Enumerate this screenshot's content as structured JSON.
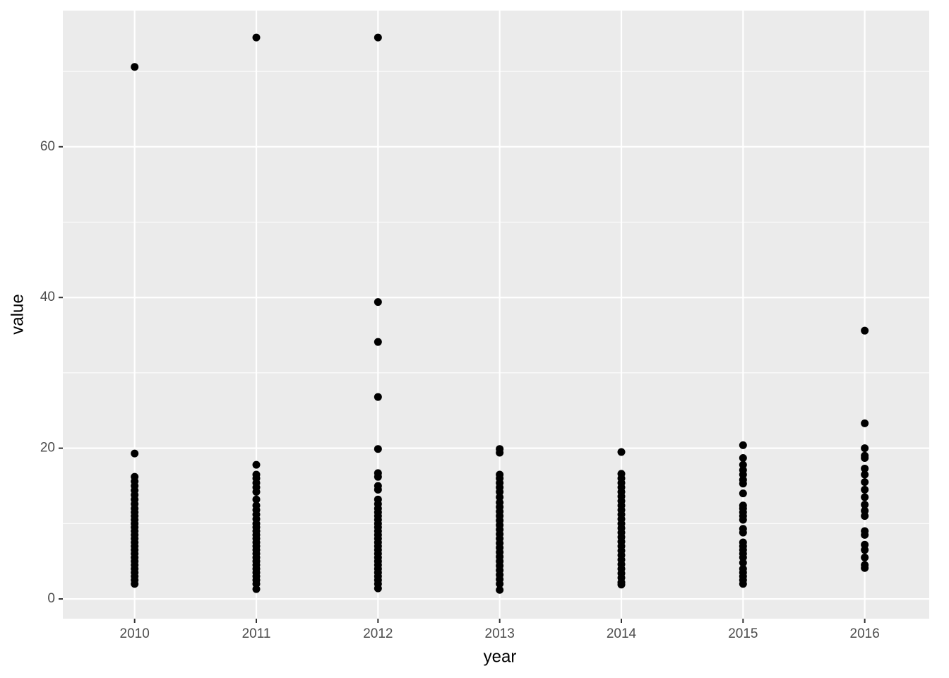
{
  "chart_data": {
    "type": "scatter",
    "x_label": "year",
    "y_label": "value",
    "xlim": [
      2009.41,
      2016.53
    ],
    "ylim": [
      -2.62,
      78.07
    ],
    "xticks": [
      2010,
      2011,
      2012,
      2013,
      2014,
      2015,
      2016
    ],
    "yticks": [
      0,
      20,
      40,
      60
    ],
    "y_minor_grid": [
      10,
      30,
      50,
      70
    ],
    "grid": true,
    "color": "#000000",
    "x": [
      2010,
      2010,
      2010,
      2010,
      2010,
      2010,
      2010,
      2010,
      2010,
      2010,
      2010,
      2010,
      2010,
      2010,
      2010,
      2010,
      2010,
      2010,
      2010,
      2010,
      2010,
      2010,
      2010,
      2010,
      2010,
      2010,
      2010,
      2010,
      2010,
      2010,
      2011,
      2011,
      2011,
      2011,
      2011,
      2011,
      2011,
      2011,
      2011,
      2011,
      2011,
      2011,
      2011,
      2011,
      2011,
      2011,
      2011,
      2011,
      2011,
      2011,
      2011,
      2011,
      2011,
      2011,
      2011,
      2011,
      2011,
      2011,
      2011,
      2011,
      2012,
      2012,
      2012,
      2012,
      2012,
      2012,
      2012,
      2012,
      2012,
      2012,
      2012,
      2012,
      2012,
      2012,
      2012,
      2012,
      2012,
      2012,
      2012,
      2012,
      2012,
      2012,
      2012,
      2012,
      2012,
      2012,
      2012,
      2012,
      2012,
      2012,
      2012,
      2012,
      2012,
      2013,
      2013,
      2013,
      2013,
      2013,
      2013,
      2013,
      2013,
      2013,
      2013,
      2013,
      2013,
      2013,
      2013,
      2013,
      2013,
      2013,
      2013,
      2013,
      2013,
      2013,
      2013,
      2013,
      2013,
      2013,
      2013,
      2013,
      2013,
      2014,
      2014,
      2014,
      2014,
      2014,
      2014,
      2014,
      2014,
      2014,
      2014,
      2014,
      2014,
      2014,
      2014,
      2014,
      2014,
      2014,
      2014,
      2014,
      2014,
      2014,
      2014,
      2014,
      2014,
      2014,
      2014,
      2014,
      2015,
      2015,
      2015,
      2015,
      2015,
      2015,
      2015,
      2015,
      2015,
      2015,
      2015,
      2015,
      2015,
      2015,
      2015,
      2015,
      2015,
      2015,
      2015,
      2015,
      2015,
      2015,
      2015,
      2015,
      2015,
      2015,
      2016,
      2016,
      2016,
      2016,
      2016,
      2016,
      2016,
      2016,
      2016,
      2016,
      2016,
      2016,
      2016,
      2016,
      2016,
      2016,
      2016,
      2016,
      2016,
      2016
    ],
    "values": [
      70.6,
      19.3,
      16.2,
      15.6,
      15,
      14.4,
      13.8,
      13.2,
      12.6,
      12,
      11.5,
      11,
      10.5,
      10,
      9.5,
      9,
      8.5,
      8,
      7.5,
      7,
      6.5,
      6,
      5.5,
      5,
      4.5,
      4,
      3.5,
      3,
      2.5,
      2,
      74.5,
      17.8,
      16.5,
      16,
      15.4,
      14.8,
      14.2,
      13.2,
      12.4,
      11.8,
      11.2,
      10.6,
      10,
      9.5,
      9,
      8.5,
      8,
      7.5,
      7,
      6.5,
      6,
      5.5,
      5,
      4.5,
      4,
      3.5,
      3,
      2.5,
      2,
      1.3,
      74.5,
      39.4,
      34.1,
      26.8,
      19.9,
      16.7,
      16.2,
      15,
      14.5,
      13.2,
      12.6,
      12,
      11.5,
      11,
      10.5,
      10,
      9.5,
      9,
      8.5,
      8,
      7.5,
      7,
      6.5,
      6,
      5.5,
      5,
      4.5,
      4,
      3.5,
      3,
      2.5,
      2,
      1.4,
      19.9,
      19.4,
      16.5,
      16,
      15.4,
      14.8,
      14.2,
      13.5,
      12.8,
      12.2,
      11.6,
      11,
      10.4,
      9.8,
      9.2,
      8.6,
      8,
      7.4,
      6.8,
      6.2,
      5.6,
      5,
      4.4,
      3.8,
      3.2,
      2.6,
      2,
      1.2,
      19.5,
      16.6,
      16,
      15.4,
      14.8,
      14.2,
      13.6,
      13,
      12.4,
      11.8,
      11.2,
      10.6,
      10,
      9.4,
      8.8,
      8.2,
      7.6,
      7,
      6.4,
      5.8,
      5.2,
      4.6,
      4,
      3.4,
      2.8,
      2.2,
      1.9,
      20.4,
      18.7,
      17.8,
      17.1,
      16.5,
      15.8,
      15.3,
      14,
      12.4,
      12,
      11.5,
      11,
      10.5,
      9.3,
      8.8,
      7.5,
      7,
      6.5,
      6,
      5.5,
      4.8,
      4,
      3.5,
      3,
      2.5,
      2,
      35.6,
      23.3,
      20,
      19,
      18.7,
      17.3,
      16.5,
      15.5,
      14.5,
      13.5,
      12.5,
      11.7,
      11,
      9,
      8.5,
      7.2,
      6.5,
      5.5,
      4.5,
      4.1
    ]
  }
}
